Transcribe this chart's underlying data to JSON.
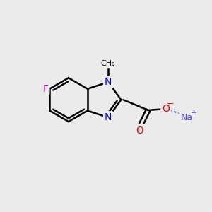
{
  "background_color": "#ebebeb",
  "bond_color": "black",
  "bond_width": 1.8,
  "atom_colors": {
    "C": "black",
    "N": "#0000ff",
    "O": "#ff0000",
    "F": "#cc00cc",
    "Na": "#4444ff",
    "default": "black"
  },
  "font_size_atoms": 10,
  "font_size_small": 8,
  "font_size_super": 7
}
